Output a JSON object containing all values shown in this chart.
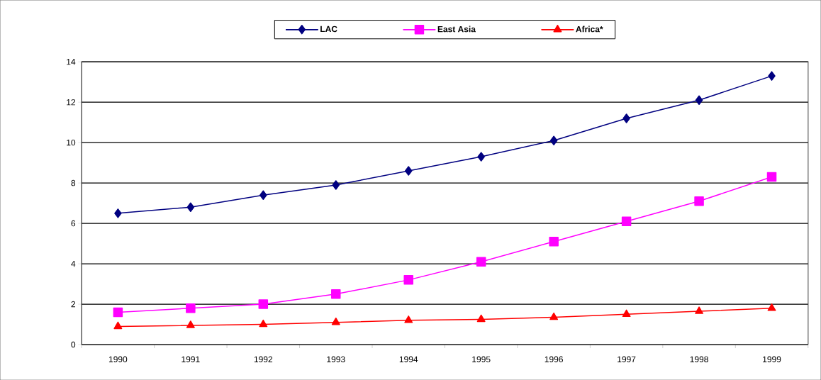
{
  "chart_data": {
    "type": "line",
    "categories": [
      "1990",
      "1991",
      "1992",
      "1993",
      "1994",
      "1995",
      "1996",
      "1997",
      "1998",
      "1999"
    ],
    "series": [
      {
        "name": "LAC",
        "color": "#000080",
        "marker": "diamond",
        "values": [
          6.5,
          6.8,
          7.4,
          7.9,
          8.6,
          9.3,
          10.1,
          11.2,
          12.1,
          13.3
        ]
      },
      {
        "name": "East Asia",
        "color": "#ff00ff",
        "marker": "square",
        "values": [
          1.6,
          1.8,
          2.0,
          2.5,
          3.2,
          4.1,
          5.1,
          6.1,
          7.1,
          8.3
        ]
      },
      {
        "name": "Africa*",
        "color": "#ff0000",
        "marker": "triangle",
        "values": [
          0.9,
          0.95,
          1.0,
          1.1,
          1.2,
          1.25,
          1.35,
          1.5,
          1.65,
          1.8
        ]
      }
    ],
    "ylim": [
      0,
      14
    ],
    "yticks": [
      0,
      2,
      4,
      6,
      8,
      10,
      12,
      14
    ],
    "grid": "y",
    "legend": "top",
    "line_style": "solid"
  }
}
